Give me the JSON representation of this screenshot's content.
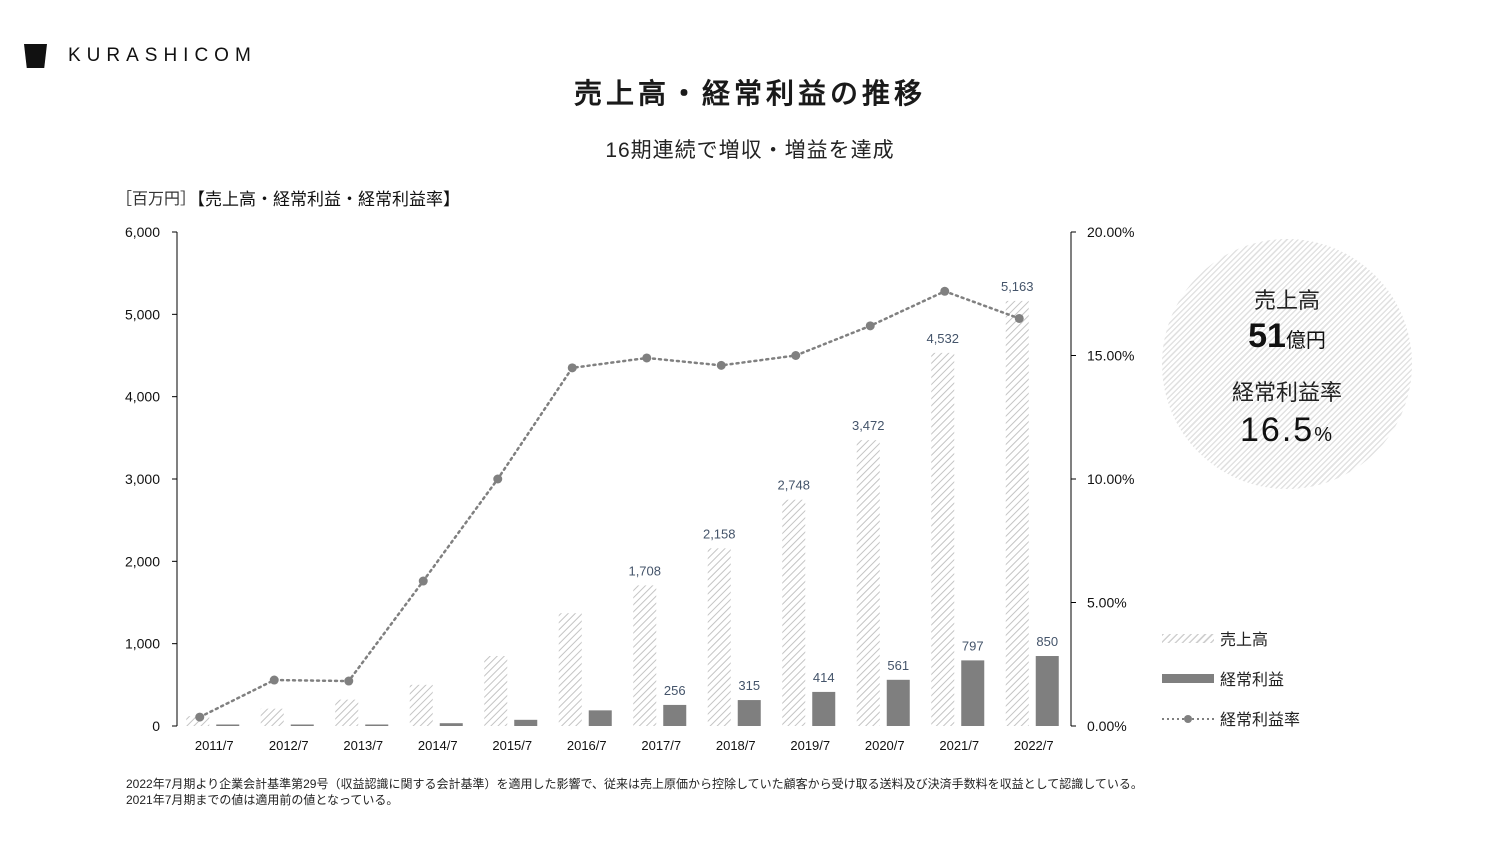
{
  "brand": {
    "logo_text": "KURASHICOM"
  },
  "header": {
    "title": "売上高・経常利益の推移",
    "subtitle": "16期連続で増収・増益を達成"
  },
  "chart_labels": {
    "unit": "［百万円］",
    "heading": "【売上高・経常利益・経常利益率】"
  },
  "highlight": {
    "sales_label": "売上高",
    "sales_value": "51",
    "sales_unit": "億円",
    "margin_label": "経常利益率",
    "margin_value": "16.5",
    "margin_unit": "%"
  },
  "legend": [
    {
      "label": "売上高",
      "style": "hatched-bar"
    },
    {
      "label": "経常利益",
      "style": "solid-bar"
    },
    {
      "label": "経常利益率",
      "style": "dotted-line-marker"
    }
  ],
  "notes": [
    "2022年7月期より企業会計基準第29号（収益認識に関する会計基準）を適用した影響で、従来は売上原価から控除していた顧客から受け取る送料及び決済手数料を収益として認識している。",
    "2021年7月期までの値は適用前の値となっている。"
  ],
  "colors": {
    "hatch": "#c8c8c8",
    "profit_bar": "#7f7f7f",
    "line": "#808080",
    "data_label": "#44546a",
    "axis": "#000000"
  },
  "chart_data": {
    "type": "bar",
    "title": "売上高・経常利益の推移",
    "subtitle": "16期連続で増収・増益を達成",
    "xlabel": "",
    "ylabel": "百万円",
    "y2label": "経常利益率",
    "categories": [
      "2011/7",
      "2012/7",
      "2013/7",
      "2014/7",
      "2015/7",
      "2016/7",
      "2017/7",
      "2018/7",
      "2019/7",
      "2020/7",
      "2021/7",
      "2022/7"
    ],
    "series": [
      {
        "name": "売上高",
        "type": "bar",
        "axis": "left",
        "values": [
          120,
          210,
          320,
          500,
          850,
          1370,
          1708,
          2158,
          2748,
          3472,
          4532,
          5163
        ],
        "labels": [
          null,
          null,
          null,
          null,
          null,
          null,
          "1,708",
          "2,158",
          "2,748",
          "3,472",
          "4,532",
          "5,163"
        ]
      },
      {
        "name": "経常利益",
        "type": "bar",
        "axis": "left",
        "values": [
          5,
          8,
          8,
          34,
          75,
          190,
          256,
          315,
          414,
          561,
          797,
          850
        ],
        "labels": [
          null,
          null,
          null,
          null,
          null,
          null,
          "256",
          "315",
          "414",
          "561",
          "797",
          "850"
        ]
      },
      {
        "name": "経常利益率",
        "type": "line",
        "axis": "right",
        "values": [
          0.36,
          1.86,
          1.82,
          5.87,
          10.0,
          14.5,
          14.9,
          14.6,
          15.0,
          16.2,
          17.6,
          16.5
        ]
      }
    ],
    "ylim": [
      0,
      6000
    ],
    "yticks": [
      "0",
      "1,000",
      "2,000",
      "3,000",
      "4,000",
      "5,000",
      "6,000"
    ],
    "y2lim": [
      0,
      20
    ],
    "y2ticks": [
      "0.00%",
      "5.00%",
      "10.00%",
      "15.00%",
      "20.00%"
    ],
    "grid": false,
    "legend_position": "right"
  }
}
